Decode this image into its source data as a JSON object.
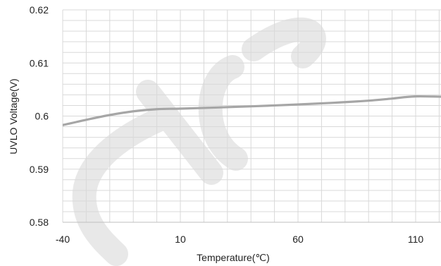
{
  "chart_data": {
    "type": "line",
    "xlabel": "Temperature(℃)",
    "ylabel": "UVLO Voltage(V)",
    "xlim": [
      -40,
      125
    ],
    "ylim": [
      0.58,
      0.62
    ],
    "x_ticks": [
      -40,
      10,
      60,
      110
    ],
    "x_tick_labels": [
      "-40",
      "10",
      "60",
      "110"
    ],
    "y_ticks": [
      0.58,
      0.59,
      0.6,
      0.61,
      0.62
    ],
    "y_tick_labels": [
      "0.58",
      "0.59",
      "0.6",
      "0.61",
      "0.62"
    ],
    "grid": true,
    "series": [
      {
        "x": [
          -40,
          -30,
          -20,
          -10,
          0,
          10,
          25,
          50,
          75,
          90,
          100,
          110,
          125
        ],
        "y": [
          0.5983,
          0.5993,
          0.6002,
          0.6009,
          0.6013,
          0.6014,
          0.6016,
          0.602,
          0.6025,
          0.6029,
          0.6033,
          0.6037,
          0.6036
        ]
      }
    ],
    "colors": {
      "line": "#a6a6a6",
      "grid": "#d9d9d9"
    }
  }
}
